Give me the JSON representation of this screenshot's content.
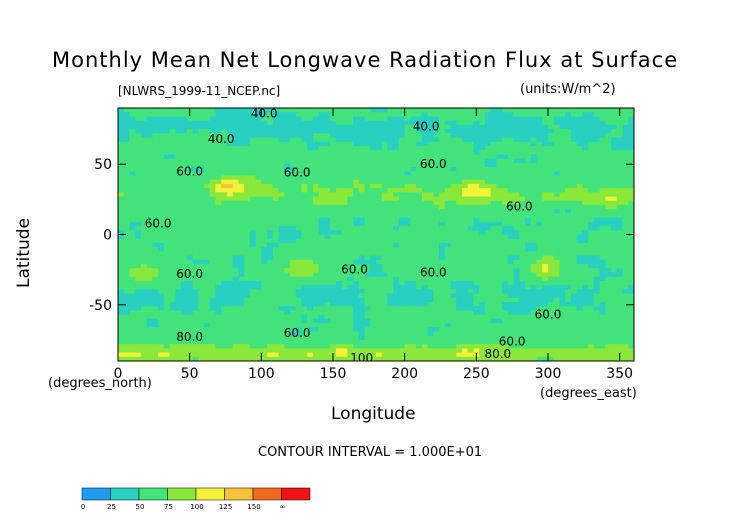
{
  "chart_data": {
    "type": "heatmap",
    "title": "Monthly Mean Net Longwave Radiation Flux at Surface",
    "file_label": "[NLWRS_1999-11_NCEP.nc]",
    "units_label": "(units:W/m^2)",
    "xlabel": "Longitude",
    "ylabel": "Latitude",
    "x_units_label": "(degrees_east)",
    "y_units_label": "(degrees_north)",
    "contour_interval_label": "CONTOUR INTERVAL = 1.000E+01",
    "xlim": [
      0,
      360
    ],
    "ylim": [
      -90,
      90
    ],
    "x_ticks": [
      0,
      50,
      100,
      150,
      200,
      250,
      300,
      350
    ],
    "y_ticks": [
      50,
      0,
      -50
    ],
    "colorbar": {
      "levels": [
        "0",
        "25",
        "50",
        "75",
        "100",
        "125",
        "150",
        "∞"
      ],
      "colors": [
        "#1e9bf0",
        "#27d0c0",
        "#43e27a",
        "#8ae83a",
        "#f2f238",
        "#f5c23a",
        "#f06a1c",
        "#f01414"
      ]
    },
    "contour_labels": [
      {
        "text": "40.0",
        "lon": 102,
        "lat": 86
      },
      {
        "text": "40.0",
        "lon": 215,
        "lat": 77
      },
      {
        "text": "40.0",
        "lon": 72,
        "lat": 68
      },
      {
        "text": "60.0",
        "lon": 50,
        "lat": 45
      },
      {
        "text": "60.0",
        "lon": 125,
        "lat": 44
      },
      {
        "text": "60.0",
        "lon": 220,
        "lat": 50
      },
      {
        "text": "60.0",
        "lon": 280,
        "lat": 20
      },
      {
        "text": "60.0",
        "lon": 28,
        "lat": 8
      },
      {
        "text": "60.0",
        "lon": 50,
        "lat": -28
      },
      {
        "text": "60.0",
        "lon": 165,
        "lat": -25
      },
      {
        "text": "60.0",
        "lon": 220,
        "lat": -27
      },
      {
        "text": "60.0",
        "lon": 300,
        "lat": -57
      },
      {
        "text": "60.0",
        "lon": 125,
        "lat": -70
      },
      {
        "text": "60.0",
        "lon": 275,
        "lat": -76
      },
      {
        "text": "80.0",
        "lon": 50,
        "lat": -73
      },
      {
        "text": "80.0",
        "lon": 265,
        "lat": -85
      },
      {
        "text": "100",
        "lon": 170,
        "lat": -88
      }
    ],
    "high_regions": [
      {
        "lon": 80,
        "lat": 35,
        "level": 125
      },
      {
        "lon": 250,
        "lat": 32,
        "level": 110
      },
      {
        "lon": 345,
        "lat": 25,
        "level": 100
      },
      {
        "lon": 130,
        "lat": -25,
        "level": 100
      },
      {
        "lon": 20,
        "lat": -27,
        "level": 100
      },
      {
        "lon": 298,
        "lat": -25,
        "level": 110
      }
    ]
  }
}
